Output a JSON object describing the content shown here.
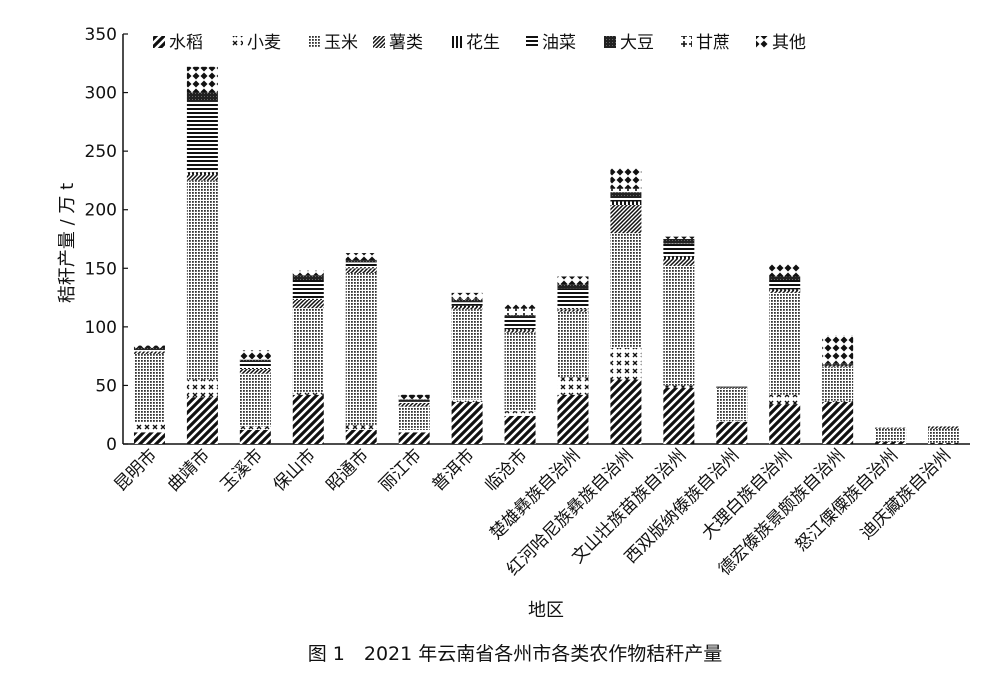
{
  "caption": "图 1　2021 年云南省各州市各类农作物秸秆产量",
  "chart_data": {
    "type": "bar",
    "stacked": true,
    "xlabel": "地区",
    "ylabel": "秸秆产量 / 万 t",
    "ylim": [
      0,
      350
    ],
    "yticks": [
      0,
      50,
      100,
      150,
      200,
      250,
      300,
      350
    ],
    "legend_position": "top",
    "categories": [
      "昆明市",
      "曲靖市",
      "玉溪市",
      "保山市",
      "昭通市",
      "丽江市",
      "普洱市",
      "临沧市",
      "楚雄彝族自治州",
      "红河哈尼族彝族自治州",
      "文山壮族苗族自治州",
      "西双版纳傣族自治州",
      "大理白族自治州",
      "德宏傣族景颇族自治州",
      "怒江傈僳族自治州",
      "迪庆藏族自治州"
    ],
    "series": [
      {
        "name": "水稻",
        "pattern": "diag",
        "values": [
          10,
          40,
          12,
          42,
          12,
          10,
          36,
          24,
          42,
          55,
          48,
          19,
          34,
          36,
          2,
          1
        ]
      },
      {
        "name": "小麦",
        "pattern": "cross",
        "values": [
          8,
          15,
          3,
          2,
          4,
          2,
          2,
          4,
          15,
          27,
          2,
          1,
          8,
          1,
          0,
          0
        ]
      },
      {
        "name": "玉米",
        "pattern": "dots",
        "values": [
          59,
          170,
          45,
          72,
          130,
          20,
          77,
          67,
          56,
          98,
          102,
          28,
          87,
          29,
          11,
          12
        ]
      },
      {
        "name": "薯类",
        "pattern": "dense",
        "values": [
          2,
          5,
          4,
          7,
          4,
          3,
          2,
          2,
          2,
          24,
          6,
          0,
          2,
          1,
          1,
          2
        ]
      },
      {
        "name": "花生",
        "pattern": "vert",
        "values": [
          0,
          2,
          1,
          1,
          1,
          0,
          1,
          1,
          1,
          3,
          2,
          0,
          1,
          0,
          0,
          0
        ]
      },
      {
        "name": "油菜",
        "pattern": "horiz",
        "values": [
          2,
          60,
          5,
          16,
          4,
          1,
          3,
          10,
          17,
          3,
          11,
          0,
          8,
          0,
          0,
          0
        ]
      },
      {
        "name": "大豆",
        "pattern": "solid",
        "values": [
          1,
          8,
          2,
          4,
          2,
          2,
          2,
          2,
          3,
          5,
          4,
          1,
          3,
          1,
          0,
          0
        ]
      },
      {
        "name": "甘蔗",
        "pattern": "plus",
        "values": [
          0,
          0,
          1,
          0,
          0,
          0,
          1,
          6,
          0,
          3,
          0,
          0,
          0,
          1,
          0,
          0
        ]
      },
      {
        "name": "其他",
        "pattern": "diamond",
        "values": [
          2,
          22,
          7,
          4,
          6,
          4,
          5,
          3,
          7,
          18,
          2,
          0,
          11,
          24,
          0,
          0
        ]
      }
    ]
  }
}
